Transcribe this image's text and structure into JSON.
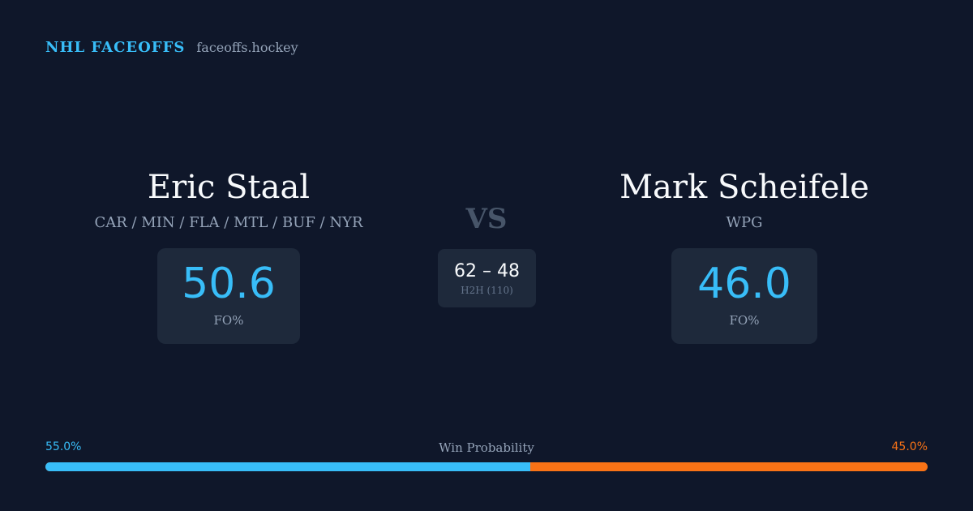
{
  "brand": {
    "name": "NHL FACEOFFS",
    "url": "faceoffs.hockey"
  },
  "player_left": {
    "name": "Eric Staal",
    "teams": "CAR / MIN / FLA / MTL / BUF / NYR",
    "stat_value": "50.6",
    "stat_label": "FO%"
  },
  "vs_label": "VS",
  "head_to_head": {
    "score": "62 – 48",
    "label": "H2H (110)"
  },
  "player_right": {
    "name": "Mark Scheifele",
    "teams": "WPG",
    "stat_value": "46.0",
    "stat_label": "FO%"
  },
  "win_probability": {
    "title": "Win Probability",
    "left_label": "55.0%",
    "right_label": "45.0%",
    "left_value": 55.0,
    "right_value": 45.0
  },
  "colors": {
    "background": "#0f172a",
    "card": "#1e293b",
    "left_accent": "#38bdf8",
    "right_accent": "#f97316"
  }
}
